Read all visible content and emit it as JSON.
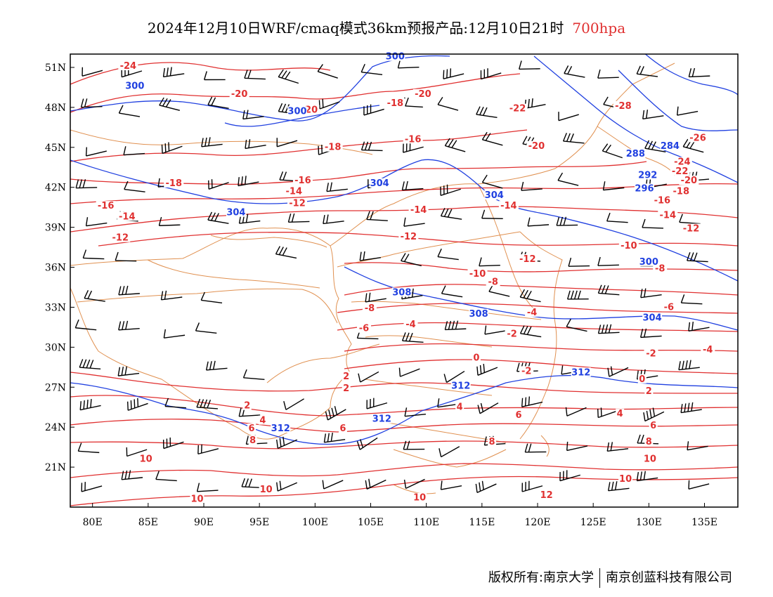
{
  "header": {
    "title": "2024年12月10日WRF/cmaq模式36km预报产品:12月10日21时",
    "level": "700hpa"
  },
  "footer": {
    "copyright": "版权所有:南京大学",
    "company": "南京创蓝科技有限公司"
  },
  "map": {
    "lon_range": [
      78,
      138
    ],
    "lat_range": [
      18,
      52
    ],
    "x_ticks": [
      "80E",
      "85E",
      "90E",
      "95E",
      "100E",
      "105E",
      "110E",
      "115E",
      "120E",
      "125E",
      "130E",
      "135E"
    ],
    "x_tick_values": [
      80,
      85,
      90,
      95,
      100,
      105,
      110,
      115,
      120,
      125,
      130,
      135
    ],
    "y_ticks": [
      "51N",
      "48N",
      "45N",
      "42N",
      "39N",
      "36N",
      "33N",
      "30N",
      "27N",
      "24N",
      "21N"
    ],
    "y_tick_values": [
      51,
      48,
      45,
      42,
      39,
      36,
      33,
      30,
      27,
      24,
      21
    ],
    "colors": {
      "temperature": "#e03030",
      "height": "#2040e0",
      "border": "#e09050",
      "wind": "#000000"
    },
    "temperature_labels": [
      {
        "text": "-24",
        "lon": 83.2,
        "lat": 51.0
      },
      {
        "text": "-20",
        "lon": 93.2,
        "lat": 48.9
      },
      {
        "text": "-20",
        "lon": 99.5,
        "lat": 47.7
      },
      {
        "text": "-20",
        "lon": 109.7,
        "lat": 48.9
      },
      {
        "text": "-18",
        "lon": 107.2,
        "lat": 48.2
      },
      {
        "text": "-22",
        "lon": 118.2,
        "lat": 47.8
      },
      {
        "text": "-18",
        "lon": 101.6,
        "lat": 44.9
      },
      {
        "text": "-16",
        "lon": 108.8,
        "lat": 45.5
      },
      {
        "text": "-20",
        "lon": 119.9,
        "lat": 45.0
      },
      {
        "text": "-18",
        "lon": 87.3,
        "lat": 42.2
      },
      {
        "text": "-16",
        "lon": 98.9,
        "lat": 42.4
      },
      {
        "text": "-14",
        "lon": 98.1,
        "lat": 41.6
      },
      {
        "text": "-16",
        "lon": 81.2,
        "lat": 40.5
      },
      {
        "text": "-14",
        "lon": 83.1,
        "lat": 39.7
      },
      {
        "text": "-12",
        "lon": 98.4,
        "lat": 40.7
      },
      {
        "text": "-14",
        "lon": 109.3,
        "lat": 40.2
      },
      {
        "text": "-14",
        "lon": 117.4,
        "lat": 40.5
      },
      {
        "text": "-12",
        "lon": 82.5,
        "lat": 38.1
      },
      {
        "text": "-12",
        "lon": 108.4,
        "lat": 38.2
      },
      {
        "text": "-12",
        "lon": 119.1,
        "lat": 36.5
      },
      {
        "text": "-10",
        "lon": 114.6,
        "lat": 35.4
      },
      {
        "text": "-8",
        "lon": 116.0,
        "lat": 34.8
      },
      {
        "text": "-8",
        "lon": 104.9,
        "lat": 32.8
      },
      {
        "text": "-6",
        "lon": 104.4,
        "lat": 31.3
      },
      {
        "text": "-4",
        "lon": 108.6,
        "lat": 31.6
      },
      {
        "text": "-4",
        "lon": 119.5,
        "lat": 32.5
      },
      {
        "text": "-2",
        "lon": 117.7,
        "lat": 30.9
      },
      {
        "text": "0",
        "lon": 114.5,
        "lat": 29.1
      },
      {
        "text": "-2",
        "lon": 119.0,
        "lat": 28.1
      },
      {
        "text": "2",
        "lon": 102.8,
        "lat": 27.7
      },
      {
        "text": "2",
        "lon": 102.8,
        "lat": 26.8
      },
      {
        "text": "2",
        "lon": 93.9,
        "lat": 25.5
      },
      {
        "text": "4",
        "lon": 95.3,
        "lat": 24.4
      },
      {
        "text": "6",
        "lon": 94.3,
        "lat": 23.8
      },
      {
        "text": "8",
        "lon": 94.4,
        "lat": 22.9
      },
      {
        "text": "6",
        "lon": 102.5,
        "lat": 23.8
      },
      {
        "text": "4",
        "lon": 113.0,
        "lat": 25.4
      },
      {
        "text": "6",
        "lon": 118.3,
        "lat": 24.8
      },
      {
        "text": "8",
        "lon": 115.9,
        "lat": 22.8
      },
      {
        "text": "10",
        "lon": 84.8,
        "lat": 21.5
      },
      {
        "text": "10",
        "lon": 95.6,
        "lat": 19.2
      },
      {
        "text": "10",
        "lon": 109.4,
        "lat": 18.6
      },
      {
        "text": "12",
        "lon": 120.8,
        "lat": 18.8
      },
      {
        "text": "10",
        "lon": 130.1,
        "lat": 21.5
      },
      {
        "text": "10",
        "lon": 127.9,
        "lat": 20.0
      },
      {
        "text": "10",
        "lon": 89.4,
        "lat": 18.5
      },
      {
        "text": "-28",
        "lon": 127.7,
        "lat": 48.0
      },
      {
        "text": "-26",
        "lon": 134.4,
        "lat": 45.6
      },
      {
        "text": "-24",
        "lon": 133.0,
        "lat": 43.8
      },
      {
        "text": "-22",
        "lon": 132.8,
        "lat": 43.1
      },
      {
        "text": "-20",
        "lon": 133.6,
        "lat": 42.4
      },
      {
        "text": "-18",
        "lon": 132.9,
        "lat": 41.6
      },
      {
        "text": "-16",
        "lon": 131.2,
        "lat": 40.9
      },
      {
        "text": "-14",
        "lon": 131.7,
        "lat": 39.8
      },
      {
        "text": "-12",
        "lon": 133.8,
        "lat": 38.8
      },
      {
        "text": "-10",
        "lon": 128.2,
        "lat": 37.5
      },
      {
        "text": "-8",
        "lon": 131.0,
        "lat": 35.8
      },
      {
        "text": "-6",
        "lon": 131.8,
        "lat": 32.9
      },
      {
        "text": "-4",
        "lon": 135.3,
        "lat": 29.7
      },
      {
        "text": "-2",
        "lon": 130.2,
        "lat": 29.4
      },
      {
        "text": "0",
        "lon": 129.4,
        "lat": 27.5
      },
      {
        "text": "2",
        "lon": 130.0,
        "lat": 26.6
      },
      {
        "text": "4",
        "lon": 127.4,
        "lat": 24.9
      },
      {
        "text": "6",
        "lon": 130.4,
        "lat": 24.0
      },
      {
        "text": "8",
        "lon": 130.0,
        "lat": 22.8
      }
    ],
    "height_labels": [
      {
        "text": "300",
        "lon": 83.8,
        "lat": 49.5
      },
      {
        "text": "300",
        "lon": 98.4,
        "lat": 47.6
      },
      {
        "text": "300",
        "lon": 107.2,
        "lat": 51.7
      },
      {
        "text": "304",
        "lon": 105.8,
        "lat": 42.2
      },
      {
        "text": "304",
        "lon": 92.9,
        "lat": 40.0
      },
      {
        "text": "304",
        "lon": 116.1,
        "lat": 41.3
      },
      {
        "text": "308",
        "lon": 107.8,
        "lat": 34.0
      },
      {
        "text": "308",
        "lon": 114.7,
        "lat": 32.4
      },
      {
        "text": "312",
        "lon": 113.1,
        "lat": 27.0
      },
      {
        "text": "312",
        "lon": 96.9,
        "lat": 23.8
      },
      {
        "text": "312",
        "lon": 106.0,
        "lat": 24.5
      },
      {
        "text": "312",
        "lon": 123.9,
        "lat": 28.0
      },
      {
        "text": "304",
        "lon": 130.3,
        "lat": 32.1
      },
      {
        "text": "300",
        "lon": 130.0,
        "lat": 36.3
      },
      {
        "text": "296",
        "lon": 129.6,
        "lat": 41.8
      },
      {
        "text": "292",
        "lon": 129.9,
        "lat": 42.8
      },
      {
        "text": "288",
        "lon": 128.8,
        "lat": 44.4
      },
      {
        "text": "284",
        "lon": 131.9,
        "lat": 45.0
      }
    ]
  }
}
